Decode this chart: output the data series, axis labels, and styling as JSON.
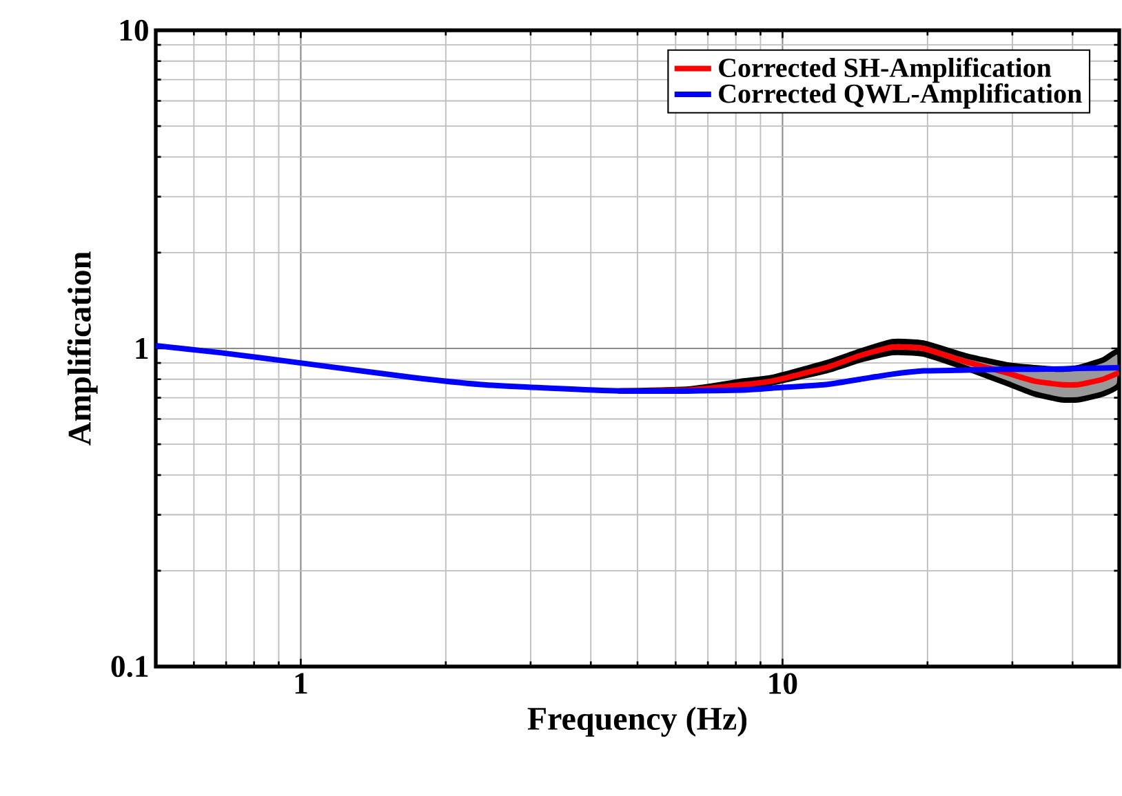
{
  "chart_data": {
    "type": "line",
    "xlabel": "Frequency (Hz)",
    "ylabel": "Amplification",
    "log": "xy",
    "grid": true,
    "legend": "top right",
    "line_style": "solid",
    "marker": "none",
    "xlim": [
      0.5,
      50
    ],
    "ylim": [
      0.1,
      10
    ],
    "xticks": [
      1,
      10
    ],
    "yticks": [
      0.1,
      1,
      10
    ],
    "x": [
      0.5,
      0.68,
      1,
      1.71,
      2.37,
      3.3,
      4.59,
      6.38,
      8.3,
      9.5,
      12.3,
      14.5,
      16.9,
      19.6,
      23.9,
      29,
      33.3,
      37.8,
      41.2,
      46.3,
      50
    ],
    "series": [
      {
        "name": "Corrected SH-Amplification",
        "color": "#ff0000",
        "values": [
          null,
          null,
          null,
          null,
          null,
          null,
          0.735,
          0.74,
          0.77,
          0.79,
          0.87,
          0.95,
          1.01,
          1.0,
          0.91,
          0.84,
          0.79,
          0.77,
          0.77,
          0.8,
          0.84
        ],
        "lower": [
          null,
          null,
          null,
          null,
          null,
          null,
          0.735,
          0.735,
          0.76,
          0.78,
          0.85,
          0.92,
          0.97,
          0.96,
          0.87,
          0.78,
          0.72,
          0.69,
          0.69,
          0.72,
          0.77
        ],
        "upper": [
          null,
          null,
          null,
          null,
          null,
          null,
          0.735,
          0.745,
          0.79,
          0.81,
          0.9,
          0.98,
          1.05,
          1.04,
          0.95,
          0.89,
          0.87,
          0.86,
          0.87,
          0.92,
          0.98
        ]
      },
      {
        "name": "Corrected QWL-Amplification",
        "color": "#0000ff",
        "values": [
          1.02,
          0.97,
          0.9,
          0.81,
          0.77,
          0.75,
          0.735,
          0.735,
          0.74,
          0.75,
          0.77,
          0.8,
          0.83,
          0.85,
          0.855,
          0.86,
          0.86,
          0.862,
          0.865,
          0.868,
          0.87
        ]
      }
    ]
  }
}
